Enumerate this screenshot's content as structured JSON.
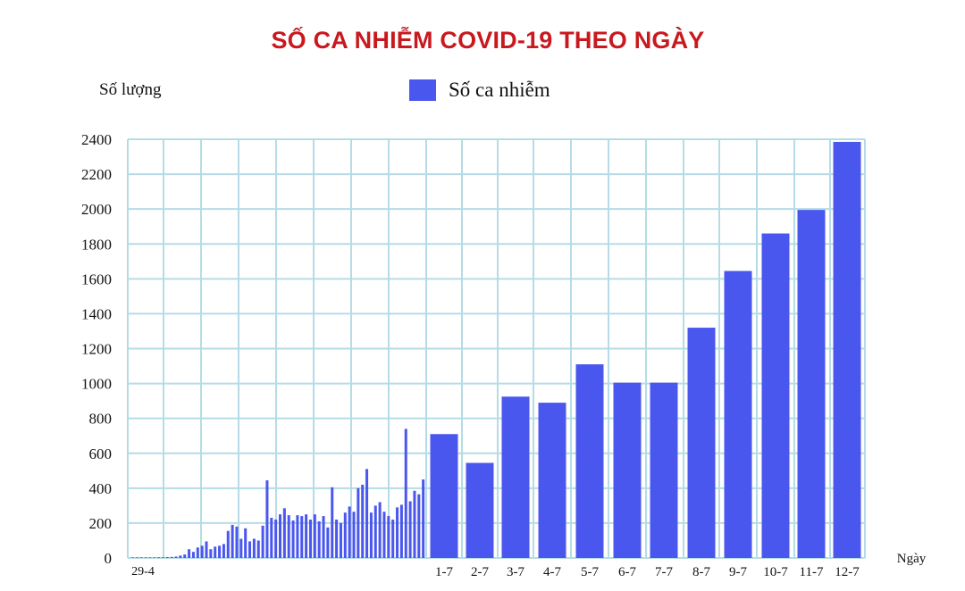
{
  "chart_data": {
    "type": "bar",
    "title": "SỐ CA NHIỄM COVID-19 THEO NGÀY",
    "ylabel": "Số lượng",
    "xlabel": "Ngày",
    "ylim": [
      0,
      2400
    ],
    "yticks": [
      "0",
      "200",
      "400",
      "600",
      "800",
      "1000",
      "1200",
      "1400",
      "1600",
      "1800",
      "2000",
      "2200",
      "2400"
    ],
    "grid": true,
    "legend_position": "top-center",
    "series": [
      {
        "name": "Số ca nhiễm",
        "color": "#4a57ee"
      }
    ],
    "daily_values_from_29_4": [
      3,
      3,
      3,
      3,
      3,
      3,
      4,
      4,
      5,
      6,
      8,
      14,
      20,
      50,
      35,
      60,
      70,
      95,
      50,
      65,
      70,
      80,
      155,
      190,
      180,
      110,
      170,
      95,
      110,
      100,
      185,
      445,
      230,
      220,
      250,
      285,
      245,
      215,
      245,
      240,
      250,
      220,
      250,
      210,
      240,
      175,
      405,
      220,
      200,
      260,
      295,
      265,
      400,
      420,
      510,
      260,
      300,
      320,
      265,
      240,
      220,
      290,
      305,
      740,
      325,
      385,
      365,
      450
    ],
    "first_day_label": "29-4",
    "categories": [
      "1-7",
      "2-7",
      "3-7",
      "4-7",
      "5-7",
      "6-7",
      "7-7",
      "8-7",
      "9-7",
      "10-7",
      "11-7",
      "12-7"
    ],
    "values": [
      710,
      545,
      925,
      890,
      1110,
      1005,
      1005,
      1320,
      1645,
      1860,
      1995,
      2385
    ]
  }
}
